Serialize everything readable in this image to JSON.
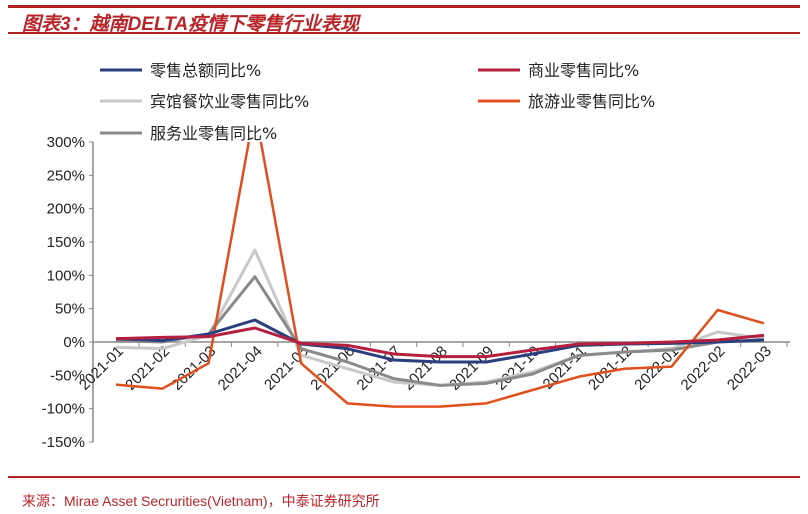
{
  "title": "图表3：越南DELTA疫情下零售行业表现",
  "source": "来源：Mirae Asset Secrurities(Vietnam)，中泰证券研究所",
  "chart_data": {
    "type": "line",
    "title": "图表3：越南DELTA疫情下零售行业表现",
    "xlabel": "",
    "ylabel": "",
    "ylim": [
      -150,
      300
    ],
    "yticks": [
      300,
      250,
      200,
      150,
      100,
      50,
      0,
      -50,
      -100,
      -150
    ],
    "ytick_labels": [
      "300%",
      "250%",
      "200%",
      "150%",
      "100%",
      "50%",
      "0%",
      "-50%",
      "-100%",
      "-150%"
    ],
    "categories": [
      "2021-01",
      "2021-02",
      "2021-03",
      "2021-04",
      "2021-05",
      "2021-06",
      "2021-07",
      "2021-08",
      "2021-09",
      "2021-10",
      "2021-11",
      "2021-12",
      "2022-01",
      "2022-02",
      "2022-03"
    ],
    "legend_position": "top",
    "grid": false,
    "series": [
      {
        "name": "零售总额同比%",
        "color": "#2b3f7e",
        "values": [
          5,
          2,
          12,
          33,
          -3,
          -10,
          -27,
          -30,
          -30,
          -18,
          -5,
          -3,
          -2,
          0,
          3
        ]
      },
      {
        "name": "商业零售同比%",
        "color": "#b5203f",
        "values": [
          5,
          7,
          8,
          21,
          -2,
          -5,
          -18,
          -22,
          -22,
          -12,
          -3,
          -2,
          0,
          3,
          10
        ]
      },
      {
        "name": "宾馆餐饮业零售同比%",
        "color": "#c8c8c8",
        "values": [
          -8,
          -10,
          10,
          138,
          -20,
          -40,
          -60,
          -65,
          -60,
          -45,
          -20,
          -15,
          -10,
          15,
          5
        ]
      },
      {
        "name": "旅游业零售同比%",
        "color": "#e0501e",
        "values": [
          -64,
          -70,
          -32,
          350,
          -32,
          -92,
          -97,
          -97,
          -92,
          -72,
          -52,
          -40,
          -37,
          48,
          28
        ]
      },
      {
        "name": "服务业零售同比%",
        "color": "#8a8a8a",
        "values": [
          2,
          0,
          12,
          98,
          -10,
          -30,
          -55,
          -65,
          -62,
          -48,
          -20,
          -15,
          -12,
          0,
          3
        ]
      }
    ]
  }
}
